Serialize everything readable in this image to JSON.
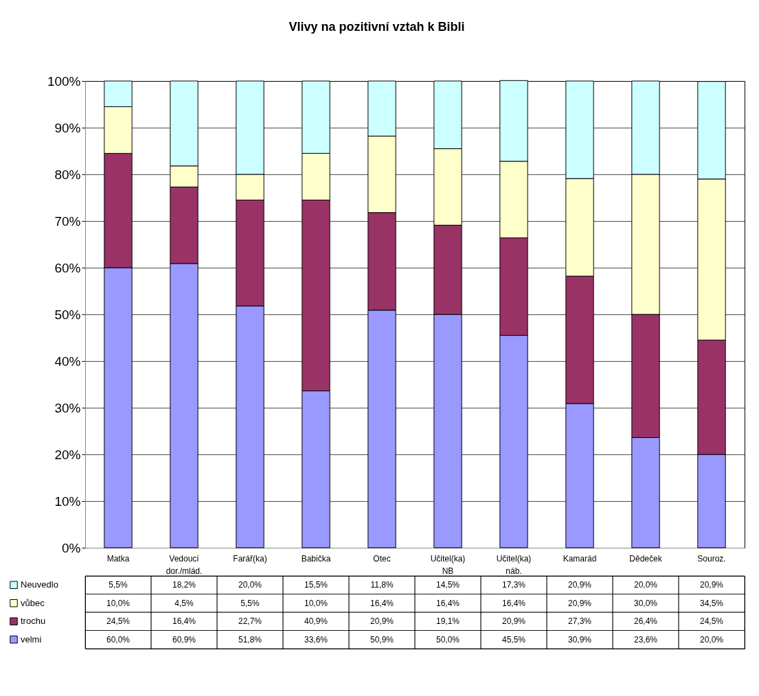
{
  "chart_data": {
    "type": "bar",
    "title": "Vlivy na pozitivní vztah k Bibli",
    "stacked": true,
    "categories": [
      "Matka",
      "Vedoucí dor./mlád.",
      "Farář(ka)",
      "Babička",
      "Otec",
      "Učitel(ka) NB",
      "Učitel(ka) náb.",
      "Kamarád",
      "Dědeček",
      "Souroz."
    ],
    "series": [
      {
        "name": "velmi",
        "color": "#9999ff",
        "values": [
          60.0,
          60.9,
          51.8,
          33.6,
          50.9,
          50.0,
          45.5,
          30.9,
          23.6,
          20.0
        ],
        "value_labels": [
          "60,0%",
          "60,9%",
          "51,8%",
          "33,6%",
          "50,9%",
          "50,0%",
          "45,5%",
          "30,9%",
          "23,6%",
          "20,0%"
        ]
      },
      {
        "name": "trochu",
        "color": "#993366",
        "values": [
          24.5,
          16.4,
          22.7,
          40.9,
          20.9,
          19.1,
          20.9,
          27.3,
          26.4,
          24.5
        ],
        "value_labels": [
          "24,5%",
          "16,4%",
          "22,7%",
          "40,9%",
          "20,9%",
          "19,1%",
          "20,9%",
          "27,3%",
          "26,4%",
          "24,5%"
        ]
      },
      {
        "name": "vůbec",
        "color": "#ffffcc",
        "values": [
          10.0,
          4.5,
          5.5,
          10.0,
          16.4,
          16.4,
          16.4,
          20.9,
          30.0,
          34.5
        ],
        "value_labels": [
          "10,0%",
          "4,5%",
          "5,5%",
          "10,0%",
          "16,4%",
          "16,4%",
          "16,4%",
          "20,9%",
          "30,0%",
          "34,5%"
        ]
      },
      {
        "name": "Neuvedlo",
        "color": "#ccffff",
        "values": [
          5.5,
          18.2,
          20.0,
          15.5,
          11.8,
          14.5,
          17.3,
          20.9,
          20.0,
          20.9
        ],
        "value_labels": [
          "5,5%",
          "18,2%",
          "20,0%",
          "15,5%",
          "11,8%",
          "14,5%",
          "17,3%",
          "20,9%",
          "20,0%",
          "20,9%"
        ]
      }
    ],
    "ylim": [
      0,
      100
    ],
    "yticks": [
      {
        "value": 0,
        "label": "0%"
      },
      {
        "value": 10,
        "label": "10%"
      },
      {
        "value": 20,
        "label": "20%"
      },
      {
        "value": 30,
        "label": "30%"
      },
      {
        "value": 40,
        "label": "40%"
      },
      {
        "value": 50,
        "label": "50%"
      },
      {
        "value": 60,
        "label": "60%"
      },
      {
        "value": 70,
        "label": "70%"
      },
      {
        "value": 80,
        "label": "80%"
      },
      {
        "value": 90,
        "label": "90%"
      },
      {
        "value": 100,
        "label": "100%"
      }
    ],
    "grid": "y",
    "legend": "bottom"
  }
}
